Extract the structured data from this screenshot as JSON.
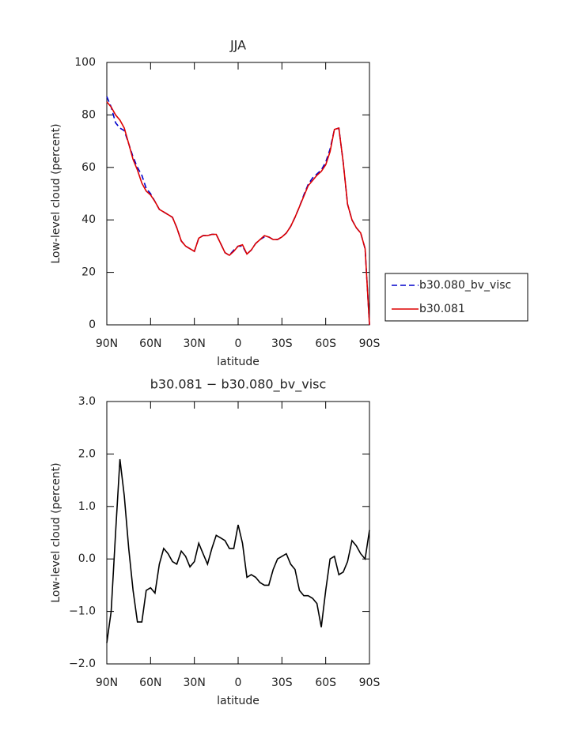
{
  "chart_data": [
    {
      "type": "line",
      "title": "JJA",
      "xlabel": "latitude",
      "ylabel": "Low-level cloud (percent)",
      "x": [
        90,
        87,
        84,
        81,
        78,
        75,
        72,
        69,
        66,
        63,
        60,
        57,
        54,
        51,
        48,
        45,
        42,
        39,
        36,
        33,
        30,
        27,
        24,
        21,
        18,
        15,
        12,
        9,
        6,
        3,
        0,
        -3,
        -6,
        -9,
        -12,
        -15,
        -18,
        -21,
        -24,
        -27,
        -30,
        -33,
        -36,
        -39,
        -42,
        -45,
        -48,
        -51,
        -54,
        -57,
        -60,
        -63,
        -66,
        -69,
        -72,
        -75,
        -78,
        -81,
        -84,
        -87,
        -90
      ],
      "series": [
        {
          "name": "b30.080_bv_visc",
          "color": "#0000cc",
          "linestyle": "dashed",
          "values": [
            87,
            83,
            77,
            75,
            74,
            69,
            64,
            60,
            57,
            52,
            50,
            47,
            44,
            43,
            42,
            41,
            37,
            32,
            30,
            29,
            28,
            33,
            34,
            34,
            34.5,
            34.5,
            31,
            27.5,
            26.5,
            28.5,
            30,
            30,
            27,
            28.5,
            31,
            32.5,
            33.5,
            33.5,
            32.5,
            32.5,
            33.5,
            35,
            37.5,
            41,
            45,
            49.5,
            53.5,
            56,
            57.5,
            59,
            62,
            67,
            74.5,
            75,
            62,
            46,
            40,
            37,
            35,
            29,
            0
          ]
        },
        {
          "name": "b30.081",
          "color": "#dd0000",
          "linestyle": "solid",
          "values": [
            85,
            83,
            80,
            78,
            75,
            69,
            63,
            59,
            54,
            51,
            49.5,
            47,
            44,
            43,
            42,
            41,
            37,
            32,
            30,
            29,
            28,
            33,
            34,
            34,
            34.5,
            34.5,
            31,
            27.5,
            26.5,
            28,
            30,
            30.5,
            27,
            28.5,
            31,
            32.5,
            34,
            33.5,
            32.5,
            32.5,
            33.5,
            35,
            37.5,
            41,
            45,
            49,
            53,
            55,
            57,
            58.5,
            61,
            66,
            74.5,
            75,
            62,
            46,
            40,
            37,
            35,
            29,
            0
          ]
        }
      ],
      "xlim": [
        90,
        -90
      ],
      "xticks": [
        {
          "value": 90,
          "label": "90N"
        },
        {
          "value": 60,
          "label": "60N"
        },
        {
          "value": 30,
          "label": "30N"
        },
        0,
        {
          "value": -30,
          "label": "30S"
        },
        {
          "value": -60,
          "label": "60S"
        },
        {
          "value": -90,
          "label": "90S"
        }
      ],
      "ylim": [
        0,
        100
      ],
      "yticks": [
        0,
        20,
        40,
        60,
        80,
        100
      ],
      "legend": "right"
    },
    {
      "type": "line",
      "title": "b30.081 − b30.080_bv_visc",
      "xlabel": "latitude",
      "ylabel": "Low-level cloud (percent)",
      "x": [
        90,
        87,
        84,
        81,
        78,
        75,
        72,
        69,
        66,
        63,
        60,
        57,
        54,
        51,
        48,
        45,
        42,
        39,
        36,
        33,
        30,
        27,
        24,
        21,
        18,
        15,
        12,
        9,
        6,
        3,
        0,
        -3,
        -6,
        -9,
        -12,
        -15,
        -18,
        -21,
        -24,
        -27,
        -30,
        -33,
        -36,
        -39,
        -42,
        -45,
        -48,
        -51,
        -54,
        -57,
        -60,
        -63,
        -66,
        -69,
        -72,
        -75,
        -78,
        -81,
        -84,
        -87,
        -90
      ],
      "series": [
        {
          "color": "#000000",
          "linestyle": "solid",
          "values": [
            -1.6,
            -1.0,
            0.5,
            1.9,
            1.2,
            0.2,
            -0.6,
            -1.2,
            -1.2,
            -0.6,
            -0.55,
            -0.65,
            -0.1,
            0.2,
            0.1,
            -0.05,
            -0.1,
            0.15,
            0.05,
            -0.15,
            -0.05,
            0.3,
            0.1,
            -0.1,
            0.2,
            0.45,
            0.4,
            0.35,
            0.2,
            0.2,
            0.65,
            0.3,
            -0.35,
            -0.3,
            -0.35,
            -0.45,
            -0.5,
            -0.5,
            -0.2,
            0.0,
            0.05,
            0.1,
            -0.1,
            -0.2,
            -0.6,
            -0.7,
            -0.7,
            -0.75,
            -0.85,
            -1.3,
            -0.6,
            0.0,
            0.05,
            -0.3,
            -0.25,
            -0.05,
            0.35,
            0.25,
            0.1,
            0.0,
            0.55
          ]
        }
      ],
      "xlim": [
        90,
        -90
      ],
      "xticks": [
        {
          "value": 90,
          "label": "90N"
        },
        {
          "value": 60,
          "label": "60N"
        },
        {
          "value": 30,
          "label": "30N"
        },
        0,
        {
          "value": -30,
          "label": "30S"
        },
        {
          "value": -60,
          "label": "60S"
        },
        {
          "value": -90,
          "label": "90S"
        }
      ],
      "ylim": [
        -2,
        3
      ],
      "yticks": [
        {
          "value": -2,
          "label": "−2.0"
        },
        {
          "value": -1,
          "label": "−1.0"
        },
        {
          "value": 0,
          "label": "0.0"
        },
        {
          "value": 1,
          "label": "1.0"
        },
        {
          "value": 2,
          "label": "2.0"
        },
        {
          "value": 3,
          "label": "3.0"
        }
      ]
    }
  ]
}
